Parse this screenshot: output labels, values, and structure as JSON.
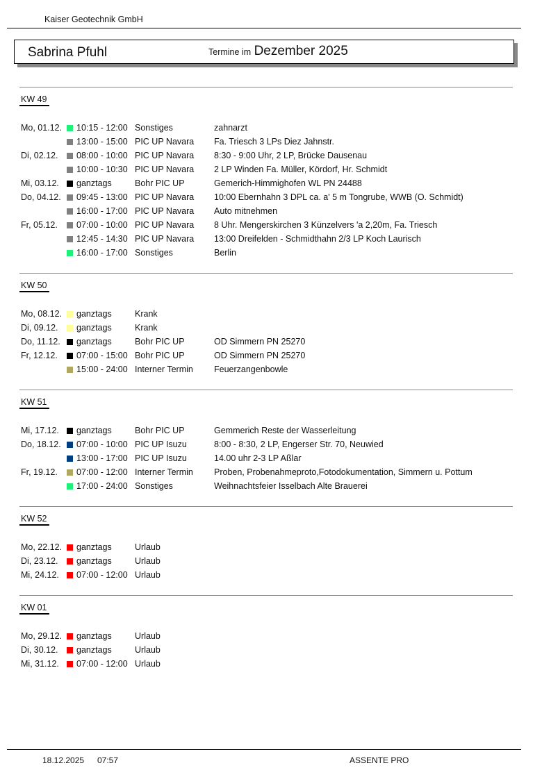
{
  "header": {
    "company": "Kaiser Geotechnik GmbH",
    "person": "Sabrina Pfuhl",
    "termine_label": "Termine im",
    "month": "Dezember 2025"
  },
  "colors": {
    "Sonstiges": "#1ef07a",
    "PIC UP Navara": "#808080",
    "Bohr PIC UP": "#000000",
    "Krank": "#ffff99",
    "Interner Termin": "#b0a860",
    "PIC UP Isuzu": "#003f7f",
    "Urlaub": "#ff0000"
  },
  "weeks": [
    {
      "label": "KW 49",
      "rows": [
        {
          "day": "Mo, 01.12.",
          "time": "10:15 - 12:00",
          "category": "Sonstiges",
          "description": "zahnarzt"
        },
        {
          "day": "",
          "time": "13:00 - 15:00",
          "category": "PIC UP Navara",
          "description": "Fa. Triesch 3 LPs Diez Jahnstr."
        },
        {
          "day": "Di,  02.12.",
          "time": "08:00 - 10:00",
          "category": "PIC UP Navara",
          "description": "8:30 - 9:00 Uhr, 2 LP, Brücke Dausenau"
        },
        {
          "day": "",
          "time": "10:00 - 10:30",
          "category": "PIC UP Navara",
          "description": "2 LP Winden Fa. Müller, Kördorf, Hr. Schmidt"
        },
        {
          "day": "Mi,  03.12.",
          "time": "ganztags",
          "category": "Bohr PIC UP",
          "description": "Gemerich-Himmighofen WL PN 24488"
        },
        {
          "day": "Do, 04.12.",
          "time": "09:45 - 13:00",
          "category": "PIC UP Navara",
          "description": "10:00 Ebernhahn 3 DPL ca. a' 5 m  Tongrube, WWB (O. Schmidt)"
        },
        {
          "day": "",
          "time": "16:00 - 17:00",
          "category": "PIC UP Navara",
          "description": "Auto mitnehmen"
        },
        {
          "day": "Fr,  05.12.",
          "time": "07:00 - 10:00",
          "category": "PIC UP Navara",
          "description": "8 Uhr. Mengerskirchen 3 Künzelvers 'a 2,20m, Fa. Triesch"
        },
        {
          "day": "",
          "time": "12:45 - 14:30",
          "category": "PIC UP Navara",
          "description": "13:00 Dreifelden - Schmidthahn 2/3 LP Koch Laurisch"
        },
        {
          "day": "",
          "time": "16:00 - 17:00",
          "category": "Sonstiges",
          "description": "Berlin"
        }
      ]
    },
    {
      "label": "KW 50",
      "rows": [
        {
          "day": "Mo, 08.12.",
          "time": "ganztags",
          "category": "Krank",
          "description": ""
        },
        {
          "day": "Di,  09.12.",
          "time": "ganztags",
          "category": "Krank",
          "description": ""
        },
        {
          "day": "Do, 11.12.",
          "time": "ganztags",
          "category": "Bohr PIC UP",
          "description": "OD Simmern PN 25270"
        },
        {
          "day": "Fr,  12.12.",
          "time": "07:00 - 15:00",
          "category": "Bohr PIC UP",
          "description": "OD Simmern PN 25270"
        },
        {
          "day": "",
          "time": "15:00 - 24:00",
          "category": "Interner Termin",
          "description": "Feuerzangenbowle"
        }
      ]
    },
    {
      "label": "KW 51",
      "rows": [
        {
          "day": "Mi,  17.12.",
          "time": "ganztags",
          "category": "Bohr PIC UP",
          "description": "Gemmerich Reste der Wasserleitung"
        },
        {
          "day": "Do, 18.12.",
          "time": "07:00 - 10:00",
          "category": "PIC UP Isuzu",
          "description": "8:00 - 8:30, 2 LP, Engerser Str. 70, Neuwied"
        },
        {
          "day": "",
          "time": "13:00 - 17:00",
          "category": "PIC UP Isuzu",
          "description": "14.00 uhr 2-3 LP Aßlar"
        },
        {
          "day": "Fr,  19.12.",
          "time": "07:00 - 12:00",
          "category": "Interner Termin",
          "description": "Proben, Probenahmeproto,Fotodokumentation, Simmern u. Pottum"
        },
        {
          "day": "",
          "time": "17:00 - 24:00",
          "category": "Sonstiges",
          "description": "Weihnachtsfeier Isselbach Alte Brauerei"
        }
      ]
    },
    {
      "label": "KW 52",
      "rows": [
        {
          "day": "Mo, 22.12.",
          "time": "ganztags",
          "category": "Urlaub",
          "description": ""
        },
        {
          "day": "Di,  23.12.",
          "time": "ganztags",
          "category": "Urlaub",
          "description": ""
        },
        {
          "day": "Mi,  24.12.",
          "time": "07:00 - 12:00",
          "category": "Urlaub",
          "description": ""
        }
      ]
    },
    {
      "label": "KW 01",
      "rows": [
        {
          "day": "Mo, 29.12.",
          "time": "ganztags",
          "category": "Urlaub",
          "description": ""
        },
        {
          "day": "Di,  30.12.",
          "time": "ganztags",
          "category": "Urlaub",
          "description": ""
        },
        {
          "day": "Mi,  31.12.",
          "time": "07:00 - 12:00",
          "category": "Urlaub",
          "description": ""
        }
      ]
    }
  ],
  "footer": {
    "date": "18.12.2025",
    "time": "07:57",
    "app": "ASSENTE PRO"
  }
}
